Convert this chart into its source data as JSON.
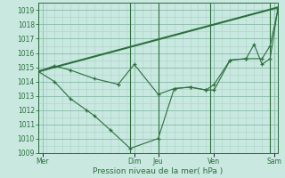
{
  "title": "",
  "xlabel": "Pression niveau de la mer( hPa )",
  "ylabel": "",
  "bg_color": "#c8e8e0",
  "grid_major_color": "#88bbaa",
  "grid_minor_color": "#aad4c8",
  "line_color": "#2d6e3e",
  "vline_color": "#2d6e3e",
  "ylim": [
    1009,
    1019.5
  ],
  "yticks_major": [
    1009,
    1010,
    1011,
    1012,
    1013,
    1014,
    1015,
    1016,
    1017,
    1018,
    1019
  ],
  "day_labels": [
    "Mer",
    "Dim",
    "Jeu",
    "Ven",
    "Sam"
  ],
  "day_positions": [
    0.5,
    12,
    15,
    22,
    29.5
  ],
  "vline_positions": [
    0,
    11.5,
    15,
    21.5,
    29
  ],
  "series1_x": [
    0,
    2,
    4,
    7,
    10,
    12,
    15,
    17,
    19,
    21,
    22,
    24,
    26,
    28,
    29,
    30
  ],
  "series1_y": [
    1014.7,
    1015.1,
    1014.8,
    1014.2,
    1013.8,
    1015.2,
    1013.1,
    1013.5,
    1013.6,
    1013.4,
    1013.4,
    1015.5,
    1015.6,
    1015.6,
    1016.5,
    1019.1
  ],
  "series2_x": [
    0,
    2,
    4,
    6,
    7,
    9,
    11.5,
    15,
    17,
    19,
    21,
    22,
    24,
    26,
    27,
    28,
    29,
    30
  ],
  "series2_y": [
    1014.7,
    1014.0,
    1012.8,
    1012.0,
    1011.6,
    1010.6,
    1009.3,
    1010.0,
    1013.5,
    1013.6,
    1013.4,
    1013.8,
    1015.5,
    1015.6,
    1016.6,
    1015.2,
    1015.6,
    1019.2
  ],
  "trend_x": [
    0,
    30
  ],
  "trend_y": [
    1014.7,
    1019.2
  ],
  "xmax": 30,
  "xmin": 0
}
